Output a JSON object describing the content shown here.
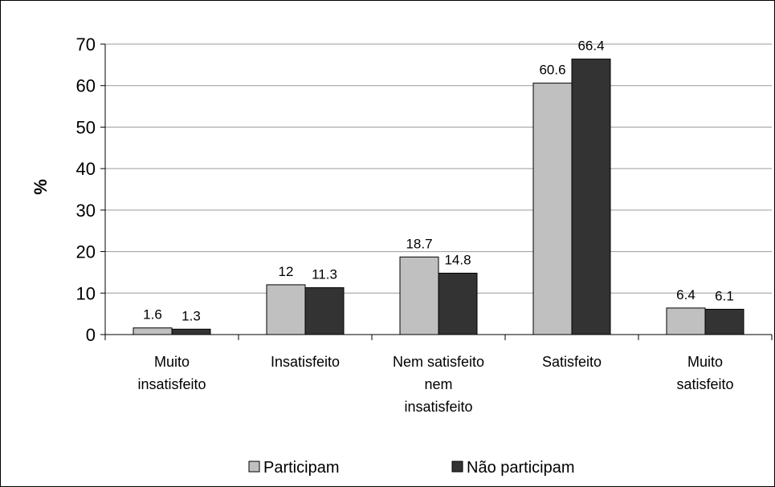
{
  "chart_data": {
    "type": "bar",
    "ylabel": "%",
    "ylim": [
      0,
      70
    ],
    "yticks": [
      0,
      10,
      20,
      30,
      40,
      50,
      60,
      70
    ],
    "grid": true,
    "legend_position": "bottom",
    "categories": [
      [
        "Muito",
        "insatisfeito"
      ],
      [
        "Insatisfeito"
      ],
      [
        "Nem satisfeito",
        "nem",
        "insatisfeito"
      ],
      [
        "Satisfeito"
      ],
      [
        "Muito",
        "satisfeito"
      ]
    ],
    "series": [
      {
        "name": "Participam",
        "color": "#c0c0c0",
        "values": [
          1.6,
          12,
          18.7,
          60.6,
          6.4
        ],
        "labels": [
          "1.6",
          "12",
          "18.7",
          "60.6",
          "6.4"
        ]
      },
      {
        "name": "Não participam",
        "color": "#333333",
        "values": [
          1.3,
          11.3,
          14.8,
          66.4,
          6.1
        ],
        "labels": [
          "1.3",
          "11.3",
          "14.8",
          "66.4",
          "6.1"
        ]
      }
    ]
  }
}
